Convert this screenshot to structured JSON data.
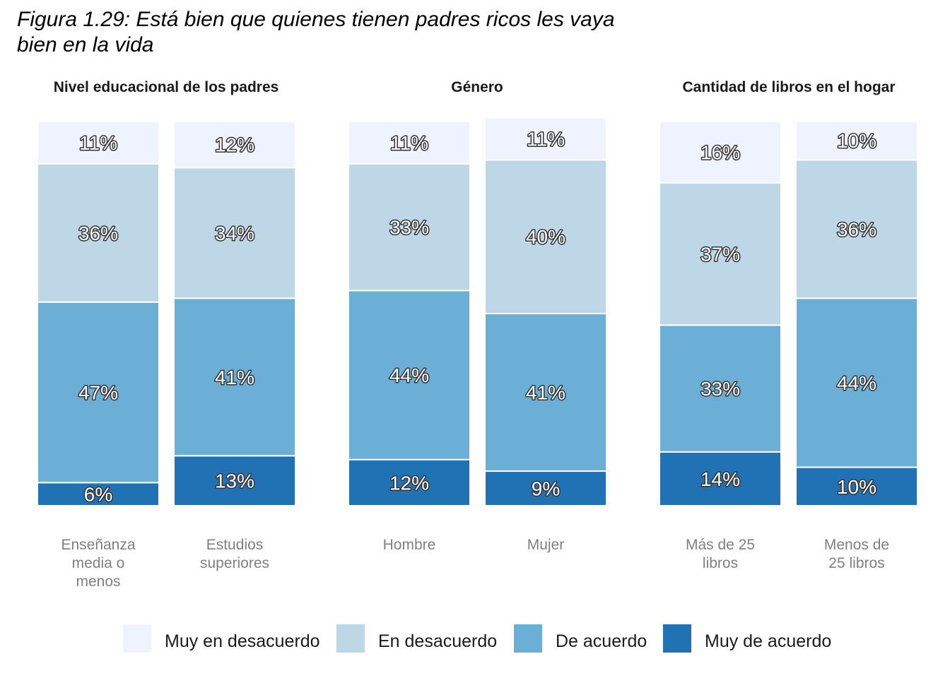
{
  "title": "Figura 1.29: Está bien que quienes tienen padres ricos les vaya\n bien en la vida",
  "chart_data": {
    "type": "bar",
    "stacked": true,
    "percent": true,
    "ylim": [
      0,
      100
    ],
    "grid": false,
    "legend_position": "bottom",
    "colors": {
      "Muy en desacuerdo": "#eff3ff",
      "En desacuerdo": "#bdd7e7",
      "De acuerdo": "#6baed6",
      "Muy de acuerdo": "#2171b5"
    },
    "legend": [
      "Muy en desacuerdo",
      "En desacuerdo",
      "De acuerdo",
      "Muy de acuerdo"
    ],
    "facets": [
      {
        "title": "Nivel educacional de los padres",
        "bars": [
          {
            "category": [
              "Enseñanza",
              "media o",
              "menos"
            ],
            "values": {
              "Muy de acuerdo": 6,
              "De acuerdo": 47,
              "En desacuerdo": 36,
              "Muy en desacuerdo": 11
            }
          },
          {
            "category": [
              "Estudios",
              "superiores"
            ],
            "values": {
              "Muy de acuerdo": 13,
              "De acuerdo": 41,
              "En desacuerdo": 34,
              "Muy en desacuerdo": 12
            }
          }
        ]
      },
      {
        "title": "Género",
        "bars": [
          {
            "category": [
              "Hombre"
            ],
            "values": {
              "Muy de acuerdo": 12,
              "De acuerdo": 44,
              "En desacuerdo": 33,
              "Muy en desacuerdo": 11
            }
          },
          {
            "category": [
              "Mujer"
            ],
            "values": {
              "Muy de acuerdo": 9,
              "De acuerdo": 41,
              "En desacuerdo": 40,
              "Muy en desacuerdo": 11
            }
          }
        ]
      },
      {
        "title": "Cantidad de libros en el hogar",
        "bars": [
          {
            "category": [
              "Más de 25",
              "libros"
            ],
            "values": {
              "Muy de acuerdo": 14,
              "De acuerdo": 33,
              "En desacuerdo": 37,
              "Muy en desacuerdo": 16
            }
          },
          {
            "category": [
              "Menos de",
              "25 libros"
            ],
            "values": {
              "Muy de acuerdo": 10,
              "De acuerdo": 44,
              "En desacuerdo": 36,
              "Muy en desacuerdo": 10
            }
          }
        ]
      }
    ]
  }
}
